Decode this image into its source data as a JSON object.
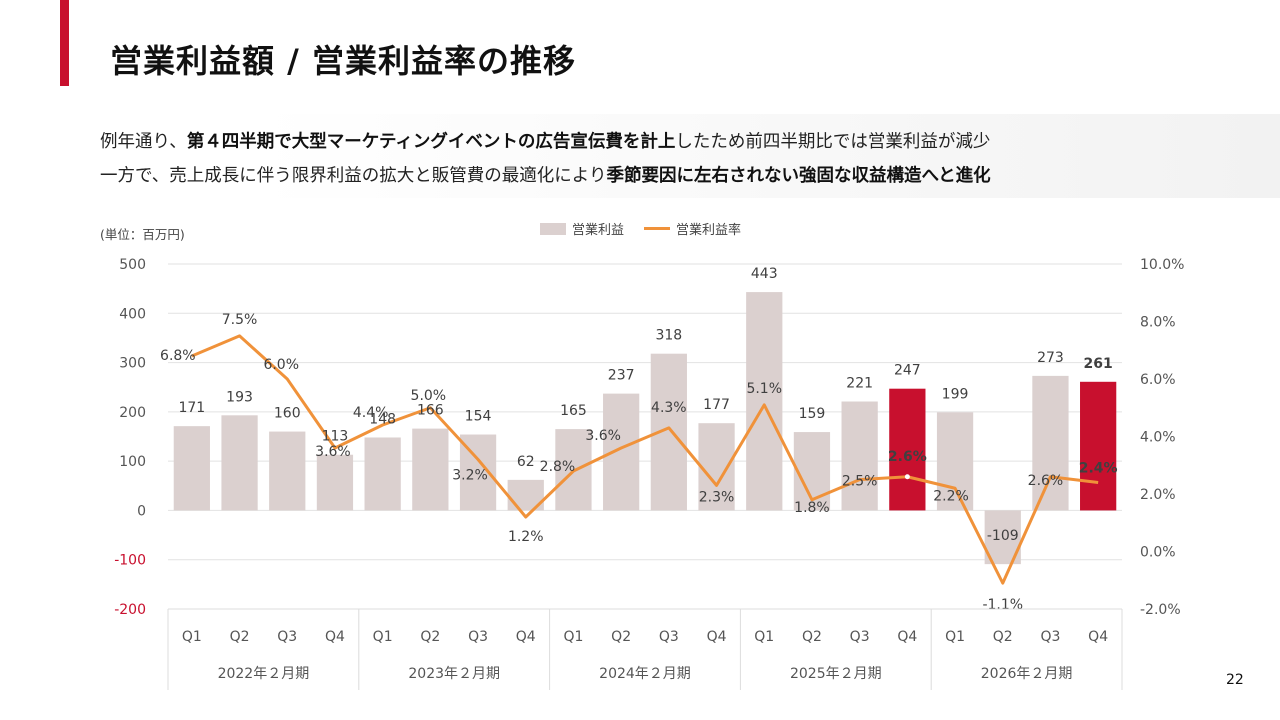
{
  "slide": {
    "title": "営業利益額 / 営業利益率の推移",
    "summary": {
      "line1": [
        {
          "text": "例年通り、",
          "bold": false
        },
        {
          "text": "第４四半期で大型マーケティングイベントの広告宣伝費を計上",
          "bold": true
        },
        {
          "text": "したため前四半期比では営業利益が減少",
          "bold": false
        }
      ],
      "line2": [
        {
          "text": "一方で、売上成長に伴う限界利益の拡大と販管費の最適化により",
          "bold": false
        },
        {
          "text": "季節要因に左右されない強固な収益構造へと進化",
          "bold": true
        }
      ]
    },
    "unit_label": "(単位：百万円)",
    "page_number": "22",
    "colors": {
      "accent": "#c8102e",
      "bar": "#dbd0cf",
      "highlight_bar": "#c8102e",
      "line": "#f0923a",
      "negative_tick": "#c8102e"
    }
  },
  "chart_data": {
    "type": "bar",
    "combo": "bar+line",
    "title": "営業利益額 / 営業利益率の推移",
    "legend": {
      "position": "top-center",
      "entries": [
        "営業利益",
        "営業利益率"
      ]
    },
    "ylabel": "(単位：百万円)",
    "y_left": {
      "min": -200,
      "max": 500,
      "ticks": [
        500,
        400,
        300,
        200,
        100,
        0,
        -100,
        -200
      ]
    },
    "y_right": {
      "min": -2.0,
      "max": 10.0,
      "ticks": [
        "10.0%",
        "8.0%",
        "6.0%",
        "4.0%",
        "2.0%",
        "0.0%",
        "-2.0%"
      ]
    },
    "grid": true,
    "categories": [
      "Q1",
      "Q2",
      "Q3",
      "Q4",
      "Q1",
      "Q2",
      "Q3",
      "Q4",
      "Q1",
      "Q2",
      "Q3",
      "Q4",
      "Q1",
      "Q2",
      "Q3",
      "Q4",
      "Q1",
      "Q2",
      "Q3",
      "Q4"
    ],
    "groups": [
      {
        "label": "2022年２月期",
        "count": 4
      },
      {
        "label": "2023年２月期",
        "count": 4
      },
      {
        "label": "2024年２月期",
        "count": 4
      },
      {
        "label": "2025年２月期",
        "count": 4
      },
      {
        "label": "2026年２月期",
        "count": 4
      }
    ],
    "series": [
      {
        "name": "営業利益",
        "kind": "bar",
        "axis": "left",
        "values": [
          171,
          193,
          160,
          113,
          148,
          166,
          154,
          62,
          165,
          237,
          318,
          177,
          443,
          159,
          221,
          247,
          199,
          -109,
          273,
          261
        ],
        "labels": [
          "171",
          "193",
          "160",
          "113",
          "148",
          "166",
          "154",
          "62",
          "165",
          "237",
          "318",
          "177",
          "443",
          "159",
          "221",
          "247",
          "199",
          "-109",
          "273",
          "261"
        ],
        "highlight_indices": [
          15,
          19
        ]
      },
      {
        "name": "営業利益率",
        "kind": "line",
        "axis": "right",
        "values": [
          6.8,
          7.5,
          6.0,
          3.6,
          4.4,
          5.0,
          3.2,
          1.2,
          2.8,
          3.6,
          4.3,
          2.3,
          5.1,
          1.8,
          2.5,
          2.6,
          2.2,
          -1.1,
          2.6,
          2.4
        ],
        "labels": [
          "6.8%",
          "7.5%",
          "6.0%",
          "3.6%",
          "4.4%",
          "5.0%",
          "3.2%",
          "1.2%",
          "2.8%",
          "3.6%",
          "4.3%",
          "2.3%",
          "5.1%",
          "1.8%",
          "2.5%",
          "2.6%",
          "2.2%",
          "-1.1%",
          "2.6%",
          "2.4%"
        ]
      }
    ]
  }
}
